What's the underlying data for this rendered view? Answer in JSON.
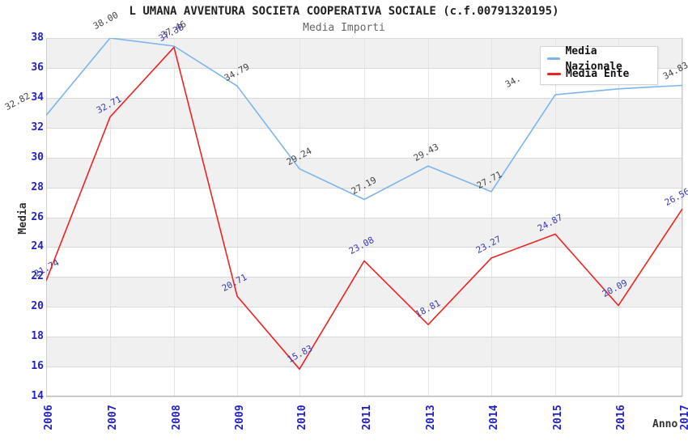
{
  "chart_data": {
    "type": "line",
    "title": "L UMANA AVVENTURA SOCIETA COOPERATIVA SOCIALE (c.f.00791320195)",
    "subtitle": "Media Importi",
    "xlabel": "Anno",
    "ylabel": "Media",
    "x_categories": [
      "2006",
      "2007",
      "2008",
      "2009",
      "2010",
      "2011",
      "2013",
      "2014",
      "2015",
      "2016",
      "2017"
    ],
    "y_ticks": [
      38,
      36,
      34,
      32,
      30,
      28,
      26,
      24,
      22,
      20,
      18,
      16,
      14
    ],
    "ylim": [
      14,
      38
    ],
    "grid": "alternating-horizontal-bands",
    "legend_position": "top-right",
    "series": [
      {
        "name": "Media Nazionale",
        "color": "#7cb5ec",
        "label_color": "#444444",
        "values": [
          32.82,
          38.0,
          37.46,
          34.79,
          29.24,
          27.19,
          29.43,
          27.71,
          34.2,
          34.6,
          34.83
        ],
        "point_labels": [
          "32.82",
          "38.00",
          "37.46",
          "34.79",
          "29.24",
          "27.19",
          "29.43",
          "27.71",
          "34.",
          "",
          "34.83"
        ]
      },
      {
        "name": "Media Ente",
        "color": "#ee2222",
        "label_color": "#3b3bb3",
        "values": [
          21.74,
          32.71,
          37.38,
          20.71,
          15.83,
          23.08,
          18.81,
          23.27,
          24.87,
          20.09,
          26.56
        ],
        "point_labels": [
          "21.74",
          "32.71",
          "37.38",
          "20.71",
          "15.83",
          "23.08",
          "18.81",
          "23.27",
          "24.87",
          "20.09",
          "26.56"
        ]
      }
    ],
    "colors": {
      "axis_tick_labels": "#2222cc",
      "band": "#f0f0f0",
      "gridline": "#d9d9d9",
      "axis_line": "#bbbbbb",
      "title": "#222222",
      "subtitle": "#666666",
      "axis_titles": "#333333"
    }
  }
}
